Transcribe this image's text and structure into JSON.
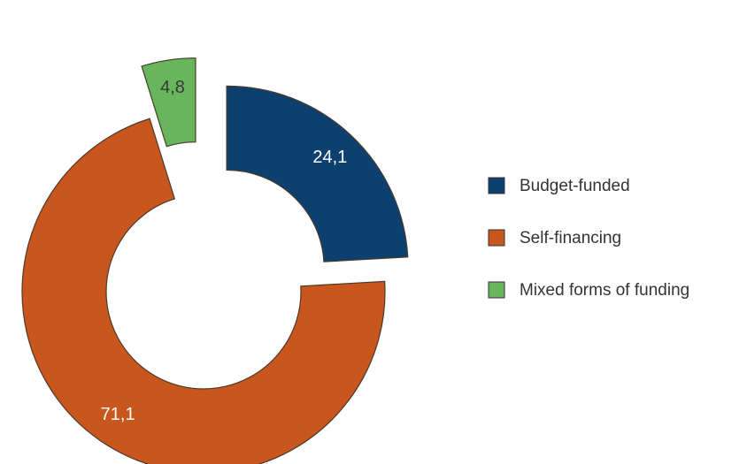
{
  "chart_data": {
    "type": "pie",
    "donut": true,
    "exploded": true,
    "categories": [
      "Budget-funded",
      "Self-financing",
      "Mixed forms of funding"
    ],
    "values": [
      24.1,
      71.1,
      4.8
    ],
    "value_labels": [
      "24,1",
      "71,1",
      "4,8"
    ],
    "colors": [
      "#0d3f6f",
      "#c9561c",
      "#67b65c"
    ],
    "label_colors": [
      "#ffffff",
      "#ffffff",
      "#3a3a3a"
    ],
    "legend": {
      "placement": "right",
      "entries": [
        "Budget-funded",
        "Self-financing",
        "Mixed forms of funding"
      ]
    }
  }
}
